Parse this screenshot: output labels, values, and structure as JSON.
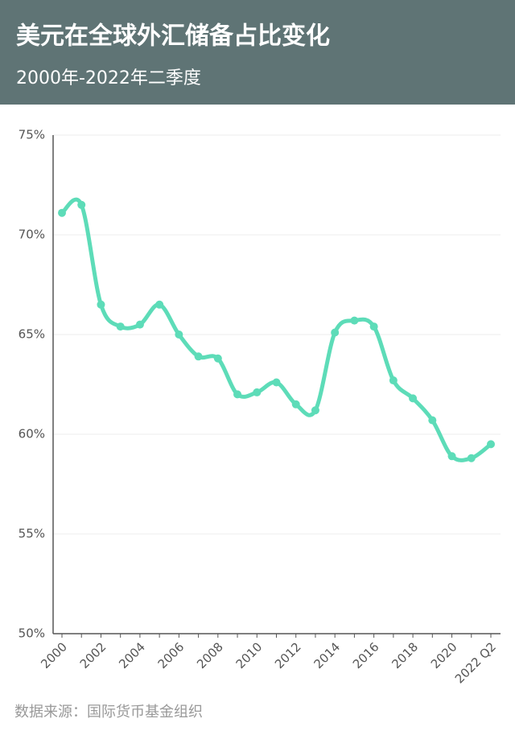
{
  "chart_data": {
    "type": "line",
    "title": "美元在全球外汇储备占比变化",
    "subtitle": "2000年-2022年二季度",
    "source": "数据来源：国际货币基金组织",
    "categories": [
      "2000",
      null,
      "2002",
      null,
      "2004",
      null,
      "2006",
      null,
      "2008",
      null,
      "2010",
      null,
      "2012",
      null,
      "2014",
      null,
      "2016",
      null,
      "2018",
      null,
      "2020",
      null,
      "2022 Q2"
    ],
    "values": [
      71.1,
      71.5,
      66.5,
      65.4,
      65.5,
      66.5,
      65.0,
      63.9,
      63.8,
      62.0,
      62.1,
      62.6,
      61.5,
      61.2,
      65.1,
      65.7,
      65.4,
      62.7,
      61.8,
      60.7,
      58.9,
      58.8,
      59.5
    ],
    "color": "#5ddcb8",
    "ylim": [
      50,
      75
    ],
    "yticks": [
      {
        "value": 50,
        "label": "50%"
      },
      {
        "value": 55,
        "label": "55%"
      },
      {
        "value": 60,
        "label": "60%"
      },
      {
        "value": 65,
        "label": "65%"
      },
      {
        "value": 70,
        "label": "70%"
      },
      {
        "value": 75,
        "label": "75%"
      }
    ],
    "grid": true
  }
}
